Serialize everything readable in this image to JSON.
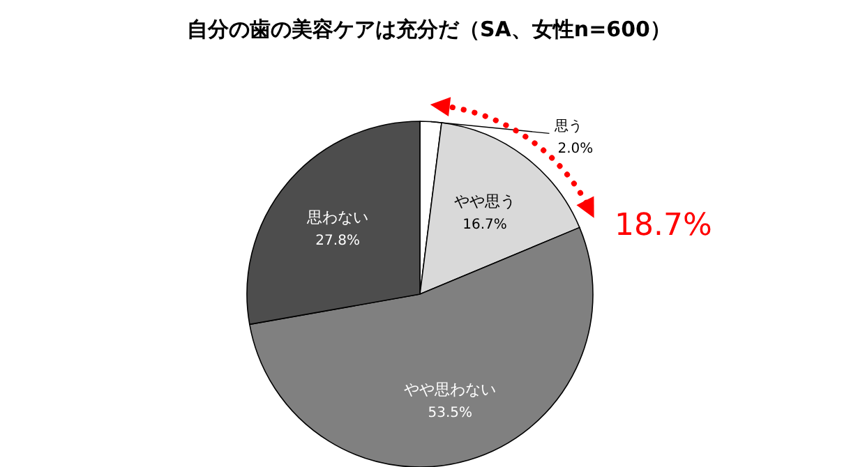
{
  "chart_data": {
    "type": "pie",
    "title": "自分の歯の美容ケアは充分だ（SA、女性n=600）",
    "categories": [
      "思う",
      "やや思う",
      "やや思わない",
      "思わない"
    ],
    "values": [
      2.0,
      16.7,
      53.5,
      27.8
    ],
    "value_labels": [
      "2.0%",
      "16.7%",
      "53.5%",
      "27.8%"
    ],
    "colors": [
      "#ffffff",
      "#d9d9d9",
      "#808080",
      "#4d4d4d"
    ],
    "annotations": [
      "18.7%"
    ]
  }
}
